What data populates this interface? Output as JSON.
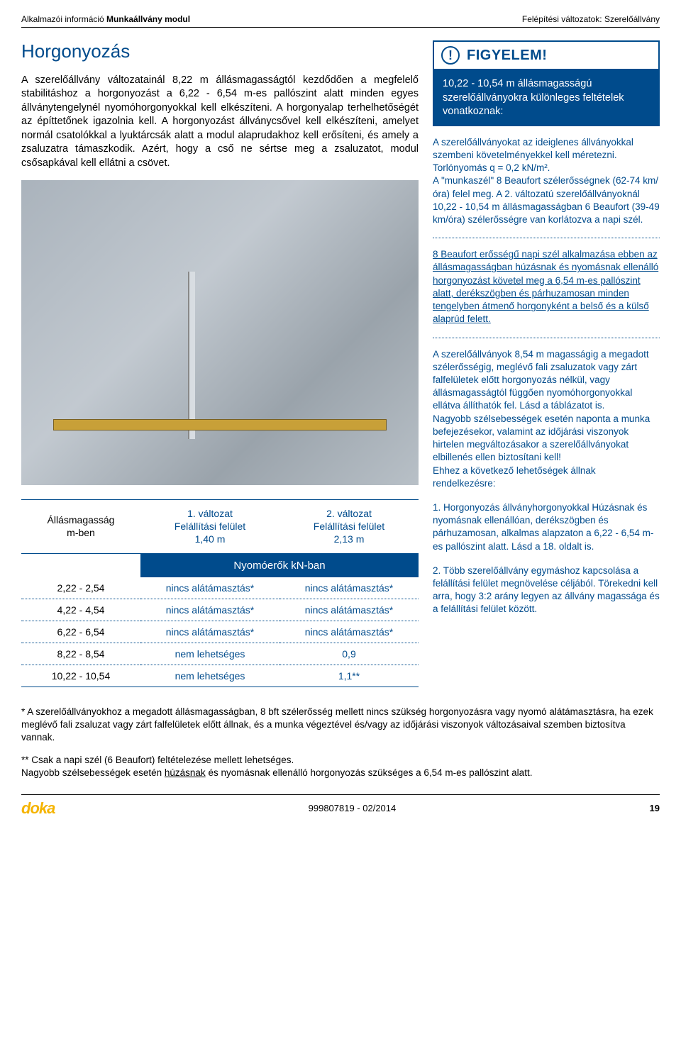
{
  "header": {
    "left_text": "Alkalmazói információ ",
    "left_bold": "Munkaállvány modul",
    "right_text": "Felépítési változatok: Szerelőállvány"
  },
  "title": "Horgonyozás",
  "paragraph": "A szerelőállvány változatainál 8,22 m állásmagasságtól kezdődően a megfelelő stabilitáshoz a horgonyozást a 6,22 - 6,54 m-es pallószint alatt minden egyes állványtengelynél nyomóhorgonyokkal kell elkészíteni. A horgonyalap terhelhetőségét az építtetőnek igazolnia kell. A horgonyozást állványcsővel kell elkészíteni, amelyet normál csatolókkal a lyuktárcsák alatt a modul alaprudakhoz kell erősíteni, és amely a zsaluzatra támaszkodik. Azért, hogy a cső ne sértse meg a zsaluzatot, modul csősapkával kell ellátni a csövet.",
  "forces_table": {
    "span_head": "Nyomóerők kN-ban",
    "col_headers": {
      "c1": "Állásmagasság\nm-ben",
      "c2": "1. változat\nFelállítási felület\n1,40 m",
      "c3": "2. változat\nFelállítási felület\n2,13 m"
    },
    "rows": [
      {
        "c1": "2,22 - 2,54",
        "c2": "nincs alátámasztás*",
        "c3": "nincs alátámasztás*"
      },
      {
        "c1": "4,22 - 4,54",
        "c2": "nincs alátámasztás*",
        "c3": "nincs alátámasztás*"
      },
      {
        "c1": "6,22 - 6,54",
        "c2": "nincs alátámasztás*",
        "c3": "nincs alátámasztás*"
      },
      {
        "c1": "8,22 - 8,54",
        "c2": "nem lehetséges",
        "c3": "0,9"
      },
      {
        "c1": "10,22 - 10,54",
        "c2": "nem lehetséges",
        "c3": "1,1**"
      }
    ]
  },
  "attention": {
    "label": "FIGYELEM!",
    "body": "10,22 - 10,54 m állásmagasságú szerelőállványokra különleges feltételek vonatkoznak:"
  },
  "side_block_1": "A szerelőállványokat az ideiglenes állványokkal szembeni követelményekkel kell méretezni. Torlónyomás q = 0,2 kN/m².\nA \"munkaszél\" 8 Beaufort szélerősségnek (62-74 km/óra) felel meg. A 2. változatú szerelőállványoknál 10,22 - 10,54 m állásmagasságban 6 Beaufort (39-49 km/óra) szélerősségre van korlátozva a napi szél.",
  "side_block_2": "8 Beaufort erősségű napi szél alkalmazása ebben az állásmagasságban húzásnak és nyomásnak ellenálló horgonyozást követel meg a 6,54 m-es pallószint alatt, derékszögben és párhuzamosan minden tengelyben átmenő horgonyként a belső és a külső alaprúd felett.",
  "side_block_3": "A szerelőállványok 8,54 m magasságig a megadott szélerősségig, meglévő fali zsaluzatok vagy zárt falfelületek előtt horgonyozás nélkül, vagy állásmagasságtól függően nyomóhorgonyokkal ellátva állíthatók fel. Lásd a táblázatot is.\nNagyobb szélsebességek esetén naponta a munka befejezésekor, valamint az időjárási viszonyok hirtelen megváltozásakor a szerelőállványokat elbillenés ellen biztosítani kell!\nEhhez a következő lehetőségek állnak rendelkezésre:",
  "side_block_4": "1.  Horgonyozás állványhorgonyokkal Húzásnak és nyomásnak ellenállóan, derékszögben és párhuzamosan, alkalmas alapzaton a 6,22 - 6,54 m-es pallószint alatt. Lásd a 18. oldalt is.",
  "side_block_5": "2.  Több szerelőállvány egymáshoz kapcsolása a felállítási felület megnövelése céljából. Törekedni kell arra, hogy 3:2 arány legyen az állvány magassága és a felállítási felület között.",
  "footnote_1": "* A szerelőállványokhoz a megadott állásmagasságban, 8 bft szélerősség mellett nincs szükség horgonyozásra vagy nyomó alátámasztásra, ha ezek meglévő fali zsaluzat vagy zárt falfelületek előtt állnak, és a munka végeztével és/vagy az időjárási viszonyok változásaival szemben biztosítva vannak.",
  "footnote_2_a": "** Csak a napi szél (6 Beaufort) feltételezése mellett lehetséges.\nNagyobb szélsebességek esetén ",
  "footnote_2_u": "húzásnak",
  "footnote_2_b": " és nyomásnak ellenálló horgonyozás szükséges a 6,54 m-es pallószint alatt.",
  "footer": {
    "logo": "doka",
    "docid": "999807819 - 02/2014",
    "page_no": "19"
  },
  "colors": {
    "primary": "#004b8c",
    "accent": "#f5b400"
  }
}
